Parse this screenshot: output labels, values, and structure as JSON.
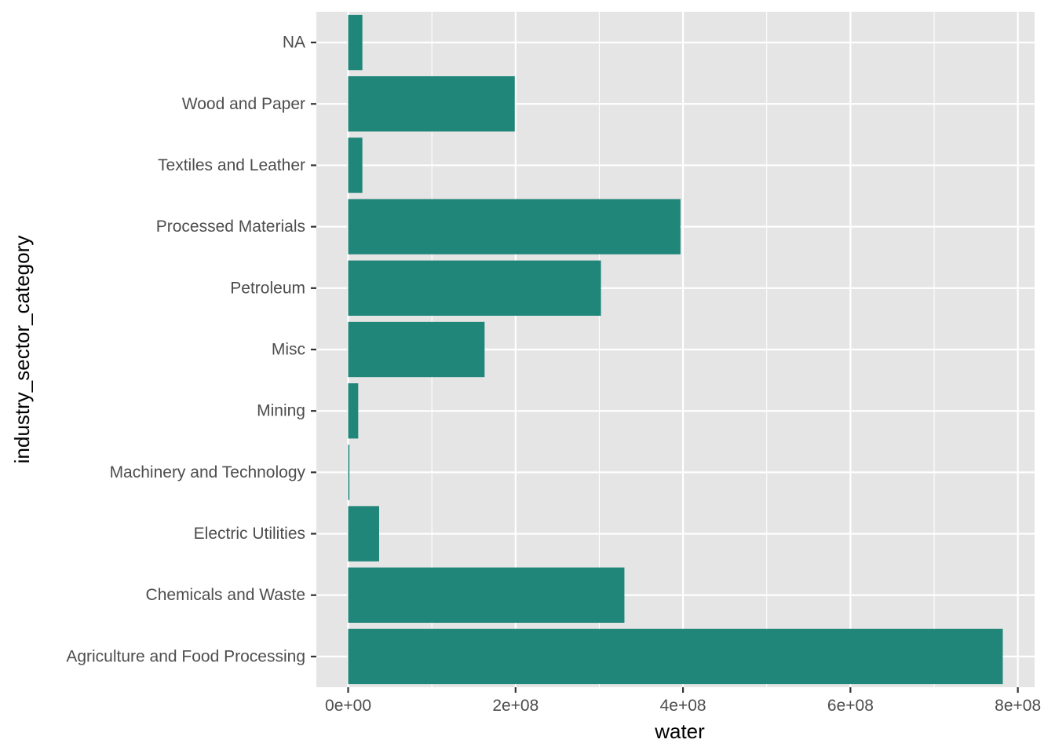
{
  "chart_data": {
    "type": "bar",
    "orientation": "horizontal",
    "categories": [
      "Agriculture and Food Processing",
      "Chemicals and Waste",
      "Electric Utilities",
      "Machinery and Technology",
      "Mining",
      "Misc",
      "Petroleum",
      "Processed Materials",
      "Textiles and Leather",
      "Wood and Paper",
      "NA"
    ],
    "values": [
      782000000,
      330000000,
      37000000,
      1500000,
      12000000,
      163000000,
      302000000,
      397000000,
      17000000,
      199000000,
      17000000
    ],
    "xlabel": "water",
    "ylabel": "industry_sector_category",
    "xlim": [
      -38000000,
      820000000
    ],
    "xticks": [
      {
        "value": 0,
        "label": "0e+00"
      },
      {
        "value": 200000000,
        "label": "2e+08"
      },
      {
        "value": 400000000,
        "label": "4e+08"
      },
      {
        "value": 600000000,
        "label": "6e+08"
      },
      {
        "value": 800000000,
        "label": "8e+08"
      }
    ],
    "grid": true,
    "legend": "none",
    "colors": {
      "bar": "#21867a",
      "panel_background": "#e5e5e5",
      "grid_major": "#ffffff",
      "tick_label": "#4d4d4d",
      "tick_mark": "#333333"
    }
  }
}
